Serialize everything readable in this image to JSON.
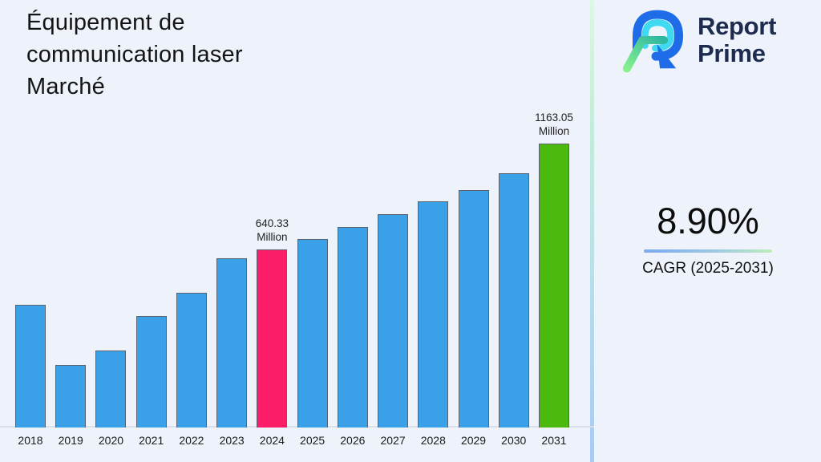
{
  "page": {
    "background": "#edf2fb"
  },
  "title": "Équipement de\ncommunication laser\nMarché",
  "logo": {
    "line1": "Report",
    "line2": "Prime"
  },
  "cagr": {
    "value": "8.90%",
    "label": "CAGR (2025-2031)"
  },
  "chart_data": {
    "type": "bar",
    "title": "Équipement de communication laser Marché",
    "xlabel": "",
    "ylabel": "",
    "unit": "Million",
    "y_axis_visible": false,
    "grid": false,
    "legend": false,
    "categories": [
      2018,
      2019,
      2020,
      2021,
      2022,
      2023,
      2024,
      2025,
      2026,
      2027,
      2028,
      2029,
      2030,
      2031
    ],
    "values": [
      367.1,
      70.1,
      141.4,
      311.6,
      426.5,
      596.8,
      640.33,
      691.8,
      751.2,
      814.6,
      877.9,
      933.4,
      1016.5,
      1163.05
    ],
    "labeled_points": [
      {
        "year": 2024,
        "value": 640.33,
        "label": "640.33\nMillion"
      },
      {
        "year": 2031,
        "value": 1163.05,
        "label": "1163.05\nMillion"
      }
    ],
    "bar_colors": [
      "#3aa1e8",
      "#3aa1e8",
      "#3aa1e8",
      "#3aa1e8",
      "#3aa1e8",
      "#3aa1e8",
      "#fb1d67",
      "#3aa1e8",
      "#3aa1e8",
      "#3aa1e8",
      "#3aa1e8",
      "#3aa1e8",
      "#3aa1e8",
      "#4cb90f"
    ],
    "colors": {
      "default_bar": "#3aa1e8",
      "highlight_2024": "#fb1d67",
      "highlight_2031": "#4cb90f",
      "bar_border": "#5a6270",
      "accent_navy": "#1d2b4f",
      "logo_blue": "#1e6ce8",
      "logo_cyan": "#3fd9f2",
      "logo_green_light": "#86ef8e",
      "logo_green_teal": "#2eb7a0"
    }
  }
}
